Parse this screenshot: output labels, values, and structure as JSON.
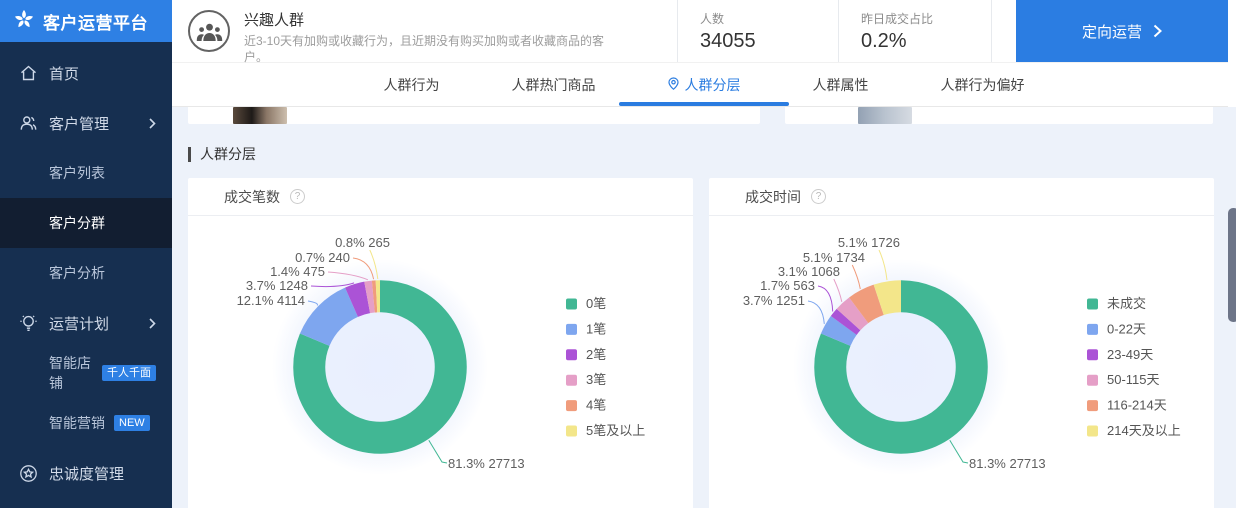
{
  "app_title": "客户运营平台",
  "sidebar": {
    "items": [
      {
        "label": "首页",
        "icon": "home-icon",
        "type": "top"
      },
      {
        "label": "客户管理",
        "icon": "users-icon",
        "type": "top",
        "chevron": true
      },
      {
        "label": "客户列表",
        "type": "sub"
      },
      {
        "label": "客户分群",
        "type": "sub",
        "active": true
      },
      {
        "label": "客户分析",
        "type": "sub"
      },
      {
        "label": "运营计划",
        "icon": "bulb-icon",
        "type": "top",
        "chevron": true
      },
      {
        "label": "智能店铺",
        "type": "sub",
        "badge": "千人千面"
      },
      {
        "label": "智能营销",
        "type": "sub",
        "badge": "NEW"
      },
      {
        "label": "忠诚度管理",
        "icon": "loyalty-icon",
        "type": "top"
      }
    ]
  },
  "header": {
    "title": "兴趣人群",
    "description": "近3-10天有加购或收藏行为，且近期没有购买加购或者收藏商品的客户。",
    "stats": [
      {
        "label": "人数",
        "value": "34055"
      },
      {
        "label": "昨日成交占比",
        "value": "0.2%"
      }
    ],
    "action": "定向运营"
  },
  "tabs": [
    {
      "label": "人群行为"
    },
    {
      "label": "人群热门商品"
    },
    {
      "label": "人群分层",
      "active": true
    },
    {
      "label": "人群属性"
    },
    {
      "label": "人群行为偏好"
    }
  ],
  "section_title": "人群分层",
  "chart_data": [
    {
      "type": "pie",
      "title": "成交笔数",
      "legend_position": "right",
      "series": [
        {
          "name": "0笔",
          "value": 27713,
          "pct": 81.3,
          "color": "#41b794",
          "label": "81.3% 27713"
        },
        {
          "name": "1笔",
          "value": 4114,
          "pct": 12.1,
          "color": "#7ea6ef",
          "label": "12.1% 4114"
        },
        {
          "name": "2笔",
          "value": 1248,
          "pct": 3.7,
          "color": "#ab53d6",
          "label": "3.7% 1248"
        },
        {
          "name": "3笔",
          "value": 475,
          "pct": 1.4,
          "color": "#e59fc7",
          "label": "1.4% 475"
        },
        {
          "name": "4笔",
          "value": 240,
          "pct": 0.7,
          "color": "#f09c7c",
          "label": "0.7% 240"
        },
        {
          "name": "5笔及以上",
          "value": 265,
          "pct": 0.8,
          "color": "#f3e68a",
          "label": "0.8% 265"
        }
      ]
    },
    {
      "type": "pie",
      "title": "成交时间",
      "legend_position": "right",
      "series": [
        {
          "name": "未成交",
          "value": 27713,
          "pct": 81.3,
          "color": "#41b794",
          "label": "81.3% 27713"
        },
        {
          "name": "0-22天",
          "value": 1251,
          "pct": 3.7,
          "color": "#7ea6ef",
          "label": "3.7% 1251"
        },
        {
          "name": "23-49天",
          "value": 563,
          "pct": 1.7,
          "color": "#ab53d6",
          "label": "1.7% 563"
        },
        {
          "name": "50-115天",
          "value": 1068,
          "pct": 3.1,
          "color": "#e59fc7",
          "label": "3.1% 1068"
        },
        {
          "name": "116-214天",
          "value": 1734,
          "pct": 5.1,
          "color": "#f09c7c",
          "label": "5.1% 1734"
        },
        {
          "name": "214天及以上",
          "value": 1726,
          "pct": 5.1,
          "color": "#f3e68a",
          "label": "5.1% 1726"
        }
      ]
    }
  ]
}
